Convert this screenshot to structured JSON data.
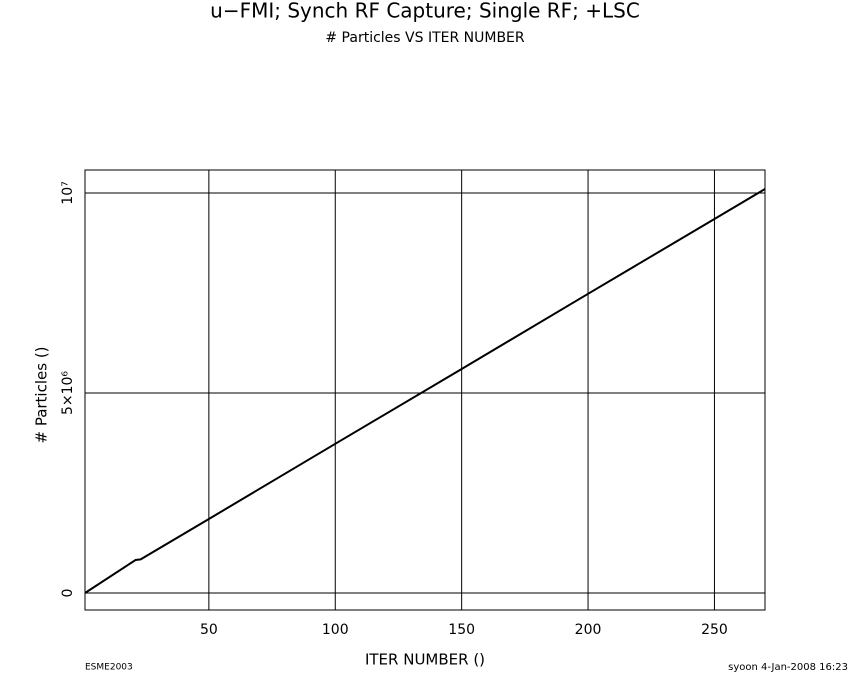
{
  "chart_data": {
    "type": "line",
    "title": "u−FMI; Synch RF Capture; Single RF; +LSC",
    "subtitle": "# Particles VS ITER NUMBER",
    "x_label": "ITER NUMBER ()",
    "y_label": "# Particles ()",
    "footer_left": "ESME2003",
    "footer_right": "syoon  4-Jan-2008 16:23",
    "x": [
      1,
      21,
      23,
      50,
      100,
      150,
      200,
      250,
      270
    ],
    "series": [
      {
        "name": "# Particles",
        "color": "#000000",
        "values": [
          0,
          825000,
          840000,
          1850000,
          3730000,
          5600000,
          7480000,
          9350000,
          10100000
        ]
      }
    ],
    "xlim": [
      1,
      270
    ],
    "xticks": [
      50,
      100,
      150,
      200,
      250
    ],
    "ylim": [
      -425000,
      10575000
    ],
    "yticks": [
      0,
      {
        "value": 5000000,
        "label": "5×10⁶"
      },
      {
        "value": 10000000,
        "label": "10⁷"
      }
    ],
    "grid": true
  }
}
